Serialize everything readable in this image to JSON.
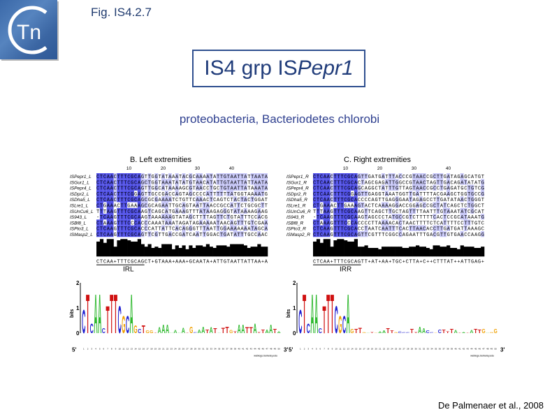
{
  "header": {
    "logo_text": "Tn",
    "fig_label": "Fig. IS4.2.7",
    "title_prefix": "IS4 grp IS",
    "title_italic": "Pepr1",
    "subtitle": "proteobacteria, Bacteriodetes chlorobi",
    "citation": "De Palmenaer et al., 2008"
  },
  "colors": {
    "dark_shade": "#5050e8",
    "light_shade": "#c8c8f8",
    "A": "#2db82d",
    "C": "#2020d0",
    "G": "#f0a000",
    "T": "#d01010",
    "text": "#1f3a6e"
  },
  "panels": [
    {
      "title": "B. Left extremities",
      "ticks": [
        "10",
        "20",
        "30",
        "40"
      ],
      "names": [
        "ISPepr1_L",
        "ISGur1_L",
        "ISPepr4_L",
        "ISDpr2_L",
        "ISDha5_L",
        "ISLre1_L",
        "ISUnCu6_L",
        "IS943_L",
        "ISBf8_L",
        "ISPto3_L",
        "ISMasp2_L"
      ],
      "seqs": [
        "CTCAACTTTCGCAGTTGGTATAAATACGCAAAATATTGTAATTATTAATA",
        "CTCAACTTTCGCAGCTGGTAAATATATGTAACATATTGTAATTATTAATA",
        "CTCAACTTTCGCAGTTGGCATAAAAGCGTAACCTGCTGTAATTATAAATA",
        "CTCAACTTTCGGAGTTGCCGACCAGTAGCCCCATTTTTTATGGTAAAATG",
        "CTCAACTTTCGCAGCGCGAAAATCTGTTCAAACTCAGTCTACTACTGGAT",
        "CTGAAACTTGAAAGCGCAGAATTGCAGTAATTAACCGCCATTCTGCGCTT",
        "TTTAAGTTTCGCAAGTCAGCATGAAAGTTTATAAGAGGGTATAAAAGAAG",
        "-TCAAGTTTCGCAAGTAAAAAAGTATAGCTTTTAGTTCTGTATTTCCACG",
        "CTAAAGTTTCCCACCCAAATAAATAGATAGAAAAATAACAGTTTGTCGAA",
        "CTCAAGTTTCGCACCCATTATTCACAGGGTTTAATTGGAAAAAAATAGCA",
        "CTCAAGTTTCGCAGTTCGTTGACCGATCAATTGGACTGATATTTGCCAAC"
      ],
      "consensus": "CTCAA+TTTCGCAGCT+GTAAA+AAA+GCAATA+ATTGTAATTATTAA+A",
      "ir_label": "IRL",
      "logo_ylabel": "bits",
      "logo_yticks": [
        "0",
        "1",
        "2"
      ],
      "logo_start": "5'",
      "logo_end": "3'",
      "logo_credit": "weblogo.berkeley.edu"
    },
    {
      "title": "C. Right extremities",
      "ticks": [
        "10",
        "20",
        "30",
        "40"
      ],
      "names": [
        "ISPepr1_R",
        "ISGur1_R",
        "ISPepr4_R",
        "ISDpr2_R",
        "ISDha5_R",
        "ISLre1_R",
        "ISUnCu6_R",
        "IS943_R",
        "ISBf8_R",
        "ISPto3_R",
        "ISMasp2_R"
      ],
      "seqs": [
        "CTCAACTTTCGCAGTTGATGATTTACCCGTAACCGCTTGATAGAGCATGT",
        "CTCAACTTTCGCACTAGCGAGATTGGCCGTAACTAGTTGACAGATATATG",
        "CTCAACTTTCGCAGCAGGCTATTTGTTAGTAACCGCCTGAGATGCTGTCG",
        "CTCAACTTTCGGAGTTGAGGTAAATGGTTGATTTTACGAAGCTGGTGCCG",
        "CTCAACTTTCGCACCCCAGTTGAGGGAATAGAGCCTTGATATAACTGGGT",
        "CTGAAACTTGAAAGTACTCAAAAGGACCGGAGCCGCTATCAGCTCTGGCT",
        "TTTAAGTTTCGCAAGTTCAGCTTGCTAGTTTTAATTTGTAAATATCGCAT",
        "-TCAAGTTTCGCAAGTAGCCCTATGCCGTCTTTTTCACTCCGCATAAATG",
        "CTAAAGTTTCCCACCCCTTAAAACACTAACTTTTCTCATTTTCCTTTGTC",
        "CTCAAGTTTCGCACCTAATCAATTTCACTTAACACCTTGATGATTAAAGC",
        "CTCAAGTTTCGCAGTTCGTTTCGGCCAGAATTTGACGTTGTGAACCAAGG"
      ],
      "consensus": "CTCAA+TTTCGCAGTT+AT+AA+TGC+CTTA+C++CTTTAT++ATTGAG+",
      "ir_label": "IRR",
      "logo_ylabel": "bits",
      "logo_yticks": [
        "0",
        "1",
        "2"
      ],
      "logo_start": "5'",
      "logo_end": "3'",
      "logo_credit": "weblogo.berkeley.edu"
    }
  ]
}
